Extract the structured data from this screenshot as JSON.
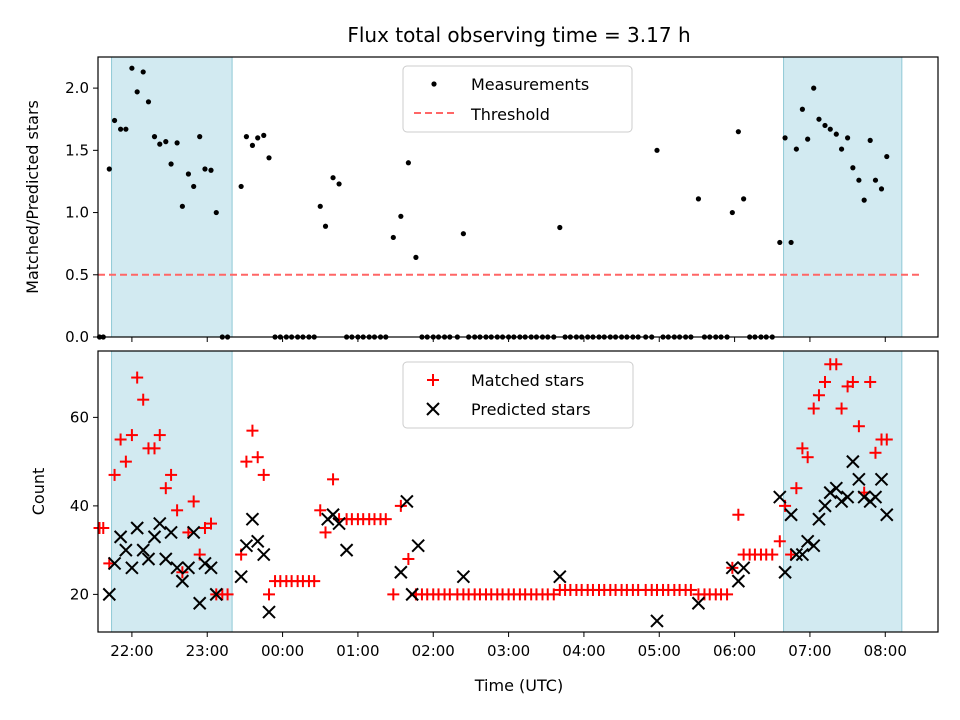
{
  "chart_data": {
    "type": "scatter",
    "title": "Flux total observing time = 3.17 h",
    "xlabel": "Time (UTC)",
    "x_ticks": [
      "22:00",
      "23:00",
      "00:00",
      "01:00",
      "02:00",
      "03:00",
      "04:00",
      "05:00",
      "06:00",
      "07:00",
      "08:00"
    ],
    "x_range_hours": [
      21.55,
      32.7
    ],
    "shaded_ranges_hours": [
      [
        21.73,
        23.33
      ],
      [
        30.65,
        32.22
      ]
    ],
    "colors": {
      "shade": "#add8e6",
      "threshold": "#ff6666",
      "matched": "#ff0000",
      "predicted": "#000000",
      "measurement": "#000000"
    },
    "top": {
      "ylabel": "Matched/Predicted stars",
      "ylim": [
        0,
        2.25
      ],
      "y_ticks": [
        "0.0",
        "0.5",
        "1.0",
        "1.5",
        "2.0"
      ],
      "legend": [
        "Measurements",
        "Threshold"
      ],
      "legend_placement": "upper-center",
      "threshold": {
        "y": 0.5,
        "x_start": 21.55,
        "x_end": 32.45
      },
      "measurements": [
        [
          21.57,
          0
        ],
        [
          21.62,
          0
        ],
        [
          21.7,
          1.35
        ],
        [
          21.77,
          1.74
        ],
        [
          21.85,
          1.67
        ],
        [
          21.92,
          1.67
        ],
        [
          22.0,
          2.16
        ],
        [
          22.07,
          1.97
        ],
        [
          22.15,
          2.13
        ],
        [
          22.22,
          1.89
        ],
        [
          22.3,
          1.61
        ],
        [
          22.37,
          1.55
        ],
        [
          22.45,
          1.57
        ],
        [
          22.52,
          1.39
        ],
        [
          22.6,
          1.56
        ],
        [
          22.67,
          1.05
        ],
        [
          22.75,
          1.31
        ],
        [
          22.82,
          1.21
        ],
        [
          22.9,
          1.61
        ],
        [
          22.97,
          1.35
        ],
        [
          23.05,
          1.34
        ],
        [
          23.12,
          1.0
        ],
        [
          23.2,
          0
        ],
        [
          23.27,
          0
        ],
        [
          23.45,
          1.21
        ],
        [
          23.52,
          1.61
        ],
        [
          23.6,
          1.54
        ],
        [
          23.67,
          1.6
        ],
        [
          23.75,
          1.62
        ],
        [
          23.82,
          1.44
        ],
        [
          23.9,
          0
        ],
        [
          23.97,
          0
        ],
        [
          24.05,
          0
        ],
        [
          24.12,
          0
        ],
        [
          24.2,
          0
        ],
        [
          24.27,
          0
        ],
        [
          24.35,
          0
        ],
        [
          24.42,
          0
        ],
        [
          24.5,
          1.05
        ],
        [
          24.57,
          0.89
        ],
        [
          24.67,
          1.28
        ],
        [
          24.75,
          1.23
        ],
        [
          24.85,
          0
        ],
        [
          24.92,
          0
        ],
        [
          25.0,
          0
        ],
        [
          25.07,
          0
        ],
        [
          25.15,
          0
        ],
        [
          25.22,
          0
        ],
        [
          25.3,
          0
        ],
        [
          25.37,
          0
        ],
        [
          25.47,
          0.8
        ],
        [
          25.57,
          0.97
        ],
        [
          25.67,
          1.4
        ],
        [
          25.77,
          0.64
        ],
        [
          25.85,
          0
        ],
        [
          25.92,
          0
        ],
        [
          26.0,
          0
        ],
        [
          26.07,
          0
        ],
        [
          26.15,
          0
        ],
        [
          26.22,
          0
        ],
        [
          26.32,
          0
        ],
        [
          26.4,
          0.83
        ],
        [
          26.47,
          0
        ],
        [
          26.55,
          0
        ],
        [
          26.62,
          0
        ],
        [
          26.7,
          0
        ],
        [
          26.77,
          0
        ],
        [
          26.85,
          0
        ],
        [
          26.92,
          0
        ],
        [
          27.0,
          0
        ],
        [
          27.07,
          0
        ],
        [
          27.15,
          0
        ],
        [
          27.22,
          0
        ],
        [
          27.3,
          0
        ],
        [
          27.37,
          0
        ],
        [
          27.45,
          0
        ],
        [
          27.52,
          0
        ],
        [
          27.6,
          0
        ],
        [
          27.68,
          0.88
        ],
        [
          27.75,
          0
        ],
        [
          27.82,
          0
        ],
        [
          27.9,
          0
        ],
        [
          27.97,
          0
        ],
        [
          28.05,
          0
        ],
        [
          28.12,
          0
        ],
        [
          28.2,
          0
        ],
        [
          28.27,
          0
        ],
        [
          28.35,
          0
        ],
        [
          28.42,
          0
        ],
        [
          28.5,
          0
        ],
        [
          28.57,
          0
        ],
        [
          28.65,
          0
        ],
        [
          28.72,
          0
        ],
        [
          28.82,
          0
        ],
        [
          28.9,
          0
        ],
        [
          28.97,
          1.5
        ],
        [
          29.05,
          0
        ],
        [
          29.12,
          0
        ],
        [
          29.2,
          0
        ],
        [
          29.27,
          0
        ],
        [
          29.35,
          0
        ],
        [
          29.42,
          0
        ],
        [
          29.52,
          1.11
        ],
        [
          29.6,
          0
        ],
        [
          29.67,
          0
        ],
        [
          29.75,
          0
        ],
        [
          29.82,
          0
        ],
        [
          29.9,
          0
        ],
        [
          29.97,
          1.0
        ],
        [
          30.05,
          1.65
        ],
        [
          30.12,
          1.11
        ],
        [
          30.2,
          0
        ],
        [
          30.27,
          0
        ],
        [
          30.35,
          0
        ],
        [
          30.42,
          0
        ],
        [
          30.5,
          0
        ],
        [
          30.6,
          0.76
        ],
        [
          30.67,
          1.6
        ],
        [
          30.75,
          0.76
        ],
        [
          30.82,
          1.51
        ],
        [
          30.9,
          1.83
        ],
        [
          30.97,
          1.59
        ],
        [
          31.05,
          2.0
        ],
        [
          31.12,
          1.75
        ],
        [
          31.2,
          1.7
        ],
        [
          31.27,
          1.67
        ],
        [
          31.35,
          1.63
        ],
        [
          31.42,
          1.51
        ],
        [
          31.5,
          1.6
        ],
        [
          31.57,
          1.36
        ],
        [
          31.65,
          1.26
        ],
        [
          31.72,
          1.1
        ],
        [
          31.8,
          1.58
        ],
        [
          31.87,
          1.26
        ],
        [
          31.95,
          1.19
        ],
        [
          32.02,
          1.45
        ]
      ]
    },
    "bottom": {
      "ylabel": "Count",
      "ylim": [
        11.5,
        75
      ],
      "y_ticks": [
        "20",
        "40",
        "60"
      ],
      "legend": [
        "Matched stars",
        "Predicted stars"
      ],
      "legend_placement": "upper-center",
      "matched": [
        [
          21.57,
          35
        ],
        [
          21.62,
          35
        ],
        [
          21.7,
          27
        ],
        [
          21.77,
          47
        ],
        [
          21.85,
          55
        ],
        [
          21.92,
          50
        ],
        [
          22.0,
          56
        ],
        [
          22.07,
          69
        ],
        [
          22.15,
          64
        ],
        [
          22.22,
          53
        ],
        [
          22.3,
          53
        ],
        [
          22.37,
          56
        ],
        [
          22.45,
          44
        ],
        [
          22.52,
          47
        ],
        [
          22.6,
          39
        ],
        [
          22.67,
          25
        ],
        [
          22.75,
          34
        ],
        [
          22.82,
          41
        ],
        [
          22.9,
          29
        ],
        [
          22.97,
          35
        ],
        [
          23.05,
          36
        ],
        [
          23.12,
          20
        ],
        [
          23.2,
          20
        ],
        [
          23.27,
          20
        ],
        [
          23.45,
          29
        ],
        [
          23.52,
          50
        ],
        [
          23.6,
          57
        ],
        [
          23.67,
          51
        ],
        [
          23.75,
          47
        ],
        [
          23.82,
          20
        ],
        [
          23.9,
          23
        ],
        [
          23.97,
          23
        ],
        [
          24.05,
          23
        ],
        [
          24.12,
          23
        ],
        [
          24.2,
          23
        ],
        [
          24.27,
          23
        ],
        [
          24.35,
          23
        ],
        [
          24.42,
          23
        ],
        [
          24.5,
          39
        ],
        [
          24.57,
          34
        ],
        [
          24.67,
          46
        ],
        [
          24.75,
          37
        ],
        [
          24.85,
          37
        ],
        [
          24.92,
          37
        ],
        [
          25.0,
          37
        ],
        [
          25.07,
          37
        ],
        [
          25.15,
          37
        ],
        [
          25.22,
          37
        ],
        [
          25.3,
          37
        ],
        [
          25.37,
          37
        ],
        [
          25.47,
          20
        ],
        [
          25.57,
          40
        ],
        [
          25.67,
          28
        ],
        [
          25.77,
          20
        ],
        [
          25.85,
          20
        ],
        [
          25.92,
          20
        ],
        [
          26.0,
          20
        ],
        [
          26.07,
          20
        ],
        [
          26.15,
          20
        ],
        [
          26.22,
          20
        ],
        [
          26.32,
          20
        ],
        [
          26.4,
          20
        ],
        [
          26.47,
          20
        ],
        [
          26.55,
          20
        ],
        [
          26.62,
          20
        ],
        [
          26.7,
          20
        ],
        [
          26.77,
          20
        ],
        [
          26.85,
          20
        ],
        [
          26.92,
          20
        ],
        [
          27.0,
          20
        ],
        [
          27.07,
          20
        ],
        [
          27.15,
          20
        ],
        [
          27.22,
          20
        ],
        [
          27.3,
          20
        ],
        [
          27.37,
          20
        ],
        [
          27.45,
          20
        ],
        [
          27.52,
          20
        ],
        [
          27.6,
          20
        ],
        [
          27.68,
          21
        ],
        [
          27.75,
          21
        ],
        [
          27.82,
          21
        ],
        [
          27.9,
          21
        ],
        [
          27.97,
          21
        ],
        [
          28.05,
          21
        ],
        [
          28.12,
          21
        ],
        [
          28.2,
          21
        ],
        [
          28.27,
          21
        ],
        [
          28.35,
          21
        ],
        [
          28.42,
          21
        ],
        [
          28.5,
          21
        ],
        [
          28.57,
          21
        ],
        [
          28.65,
          21
        ],
        [
          28.72,
          21
        ],
        [
          28.82,
          21
        ],
        [
          28.9,
          21
        ],
        [
          28.97,
          21
        ],
        [
          29.05,
          21
        ],
        [
          29.12,
          21
        ],
        [
          29.2,
          21
        ],
        [
          29.27,
          21
        ],
        [
          29.35,
          21
        ],
        [
          29.42,
          21
        ],
        [
          29.52,
          20
        ],
        [
          29.6,
          20
        ],
        [
          29.67,
          20
        ],
        [
          29.75,
          20
        ],
        [
          29.82,
          20
        ],
        [
          29.9,
          20
        ],
        [
          29.97,
          26
        ],
        [
          30.05,
          38
        ],
        [
          30.12,
          29
        ],
        [
          30.2,
          29
        ],
        [
          30.27,
          29
        ],
        [
          30.35,
          29
        ],
        [
          30.42,
          29
        ],
        [
          30.5,
          29
        ],
        [
          30.6,
          32
        ],
        [
          30.67,
          40
        ],
        [
          30.75,
          29
        ],
        [
          30.82,
          44
        ],
        [
          30.9,
          53
        ],
        [
          30.97,
          51
        ],
        [
          31.05,
          62
        ],
        [
          31.12,
          65
        ],
        [
          31.2,
          68
        ],
        [
          31.27,
          72
        ],
        [
          31.35,
          72
        ],
        [
          31.42,
          62
        ],
        [
          31.5,
          67
        ],
        [
          31.57,
          68
        ],
        [
          31.65,
          58
        ],
        [
          31.72,
          43
        ],
        [
          31.8,
          68
        ],
        [
          31.87,
          52
        ],
        [
          31.95,
          55
        ],
        [
          32.02,
          55
        ]
      ],
      "predicted": [
        [
          21.7,
          20
        ],
        [
          21.77,
          27
        ],
        [
          21.85,
          33
        ],
        [
          21.92,
          30
        ],
        [
          22.0,
          26
        ],
        [
          22.07,
          35
        ],
        [
          22.15,
          30
        ],
        [
          22.22,
          28
        ],
        [
          22.3,
          33
        ],
        [
          22.37,
          36
        ],
        [
          22.45,
          28
        ],
        [
          22.52,
          34
        ],
        [
          22.6,
          26
        ],
        [
          22.67,
          23
        ],
        [
          22.75,
          26
        ],
        [
          22.82,
          34
        ],
        [
          22.9,
          18
        ],
        [
          22.97,
          27
        ],
        [
          23.05,
          26
        ],
        [
          23.12,
          20
        ],
        [
          23.45,
          24
        ],
        [
          23.52,
          31
        ],
        [
          23.6,
          37
        ],
        [
          23.67,
          32
        ],
        [
          23.75,
          29
        ],
        [
          23.82,
          16
        ],
        [
          24.6,
          37
        ],
        [
          24.67,
          38
        ],
        [
          24.75,
          36
        ],
        [
          24.85,
          30
        ],
        [
          25.57,
          25
        ],
        [
          25.65,
          41
        ],
        [
          25.72,
          20
        ],
        [
          25.8,
          31
        ],
        [
          26.4,
          24
        ],
        [
          27.68,
          24
        ],
        [
          28.97,
          14
        ],
        [
          29.52,
          18
        ],
        [
          29.97,
          26
        ],
        [
          30.05,
          23
        ],
        [
          30.12,
          26
        ],
        [
          30.6,
          42
        ],
        [
          30.67,
          25
        ],
        [
          30.75,
          38
        ],
        [
          30.82,
          29
        ],
        [
          30.9,
          29
        ],
        [
          30.97,
          32
        ],
        [
          31.05,
          31
        ],
        [
          31.12,
          37
        ],
        [
          31.2,
          40
        ],
        [
          31.27,
          43
        ],
        [
          31.35,
          44
        ],
        [
          31.42,
          41
        ],
        [
          31.5,
          42
        ],
        [
          31.57,
          50
        ],
        [
          31.65,
          46
        ],
        [
          31.72,
          42
        ],
        [
          31.8,
          41
        ],
        [
          31.87,
          42
        ],
        [
          31.95,
          46
        ],
        [
          32.02,
          38
        ]
      ]
    }
  }
}
